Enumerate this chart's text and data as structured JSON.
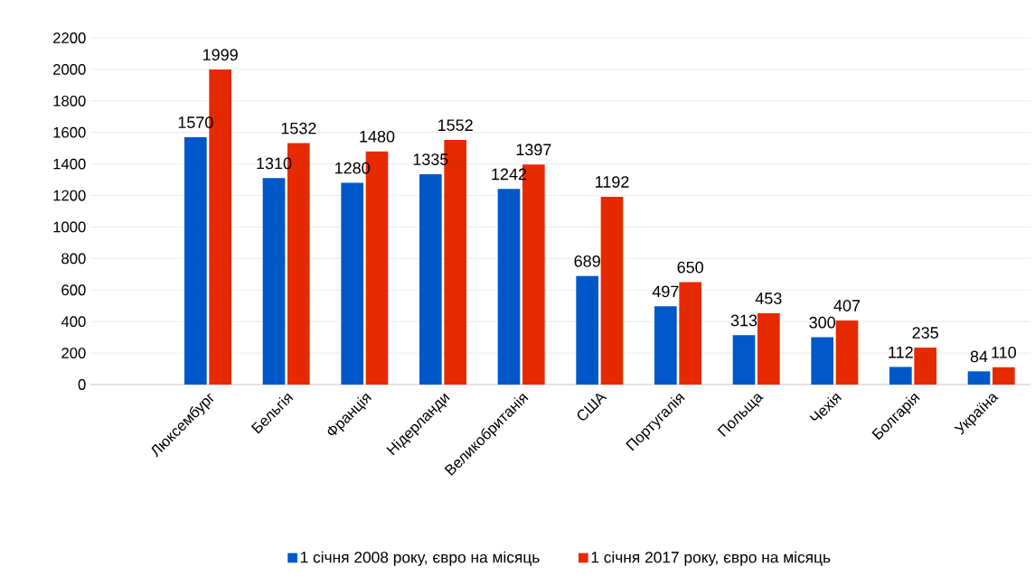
{
  "chart_data": {
    "type": "bar",
    "categories": [
      null,
      "Люксембург",
      "Бельгія",
      "Франція",
      "Нідерланди",
      "Великобританія",
      "США",
      "Португалія",
      "Польща",
      "Чехія",
      "Болгарія",
      "Україна"
    ],
    "series": [
      {
        "name": "1 січня 2008 року, євро на місяць",
        "color": "#0058c8",
        "values": [
          null,
          1570,
          1310,
          1280,
          1335,
          1242,
          689,
          497,
          313,
          300,
          112,
          84
        ]
      },
      {
        "name": "1 січня 2017 року, євро на місяць",
        "color": "#e62a00",
        "values": [
          null,
          1999,
          1532,
          1480,
          1552,
          1397,
          1192,
          650,
          453,
          407,
          235,
          110
        ]
      }
    ],
    "ylim": [
      0,
      2200
    ],
    "yticks": [
      0,
      200,
      400,
      600,
      800,
      1000,
      1200,
      1400,
      1600,
      1800,
      2000,
      2200
    ],
    "grid": "y",
    "legend": "bottom",
    "data_labels": true
  }
}
